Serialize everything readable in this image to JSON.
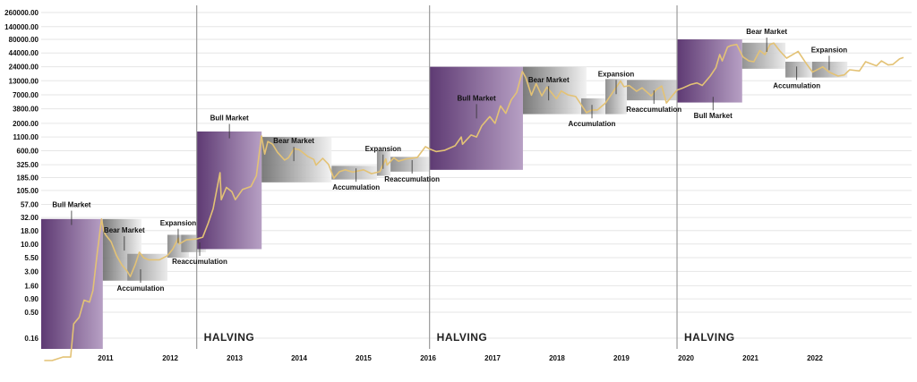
{
  "chart_data": {
    "type": "line",
    "title": "",
    "xlabel": "",
    "ylabel": "",
    "y_scale": "log",
    "y_ticks": [
      "260000.00",
      "140000.00",
      "80000.00",
      "44000.00",
      "24000.00",
      "13000.00",
      "7000.00",
      "3800.00",
      "2000.00",
      "1100.00",
      "600.00",
      "325.00",
      "185.00",
      "105.00",
      "57.00",
      "32.00",
      "18.00",
      "10.00",
      "5.50",
      "3.00",
      "1.60",
      "0.90",
      "0.50",
      "0.16"
    ],
    "x_ticks": [
      "2011",
      "2012",
      "2013",
      "2014",
      "2015",
      "2016",
      "2017",
      "2018",
      "2019",
      "2020",
      "2021",
      "2022"
    ],
    "halving_label": "HALVING",
    "halvings": [
      "2012-11-28",
      "2016-07-09",
      "2020-05-11"
    ],
    "series": [
      {
        "color": "#e3c275",
        "points": [
          [
            "2010-07-18",
            0.06
          ],
          [
            "2010-09-01",
            0.06
          ],
          [
            "2010-11-01",
            0.07
          ],
          [
            "2010-12-15",
            0.07
          ],
          [
            "2011-01-01",
            0.3
          ],
          [
            "2011-02-01",
            0.4
          ],
          [
            "2011-03-01",
            0.85
          ],
          [
            "2011-04-01",
            0.78
          ],
          [
            "2011-04-20",
            1.3
          ],
          [
            "2011-05-15",
            7
          ],
          [
            "2011-06-08",
            30
          ],
          [
            "2011-06-20",
            18
          ],
          [
            "2011-07-01",
            15
          ],
          [
            "2011-08-01",
            11
          ],
          [
            "2011-09-01",
            6
          ],
          [
            "2011-10-01",
            4
          ],
          [
            "2011-11-01",
            3
          ],
          [
            "2011-11-18",
            2.4
          ],
          [
            "2011-12-15",
            4
          ],
          [
            "2012-01-08",
            7
          ],
          [
            "2012-02-01",
            5.5
          ],
          [
            "2012-03-01",
            5
          ],
          [
            "2012-05-01",
            5
          ],
          [
            "2012-06-15",
            6
          ],
          [
            "2012-07-15",
            8
          ],
          [
            "2012-08-16",
            13
          ],
          [
            "2012-08-20",
            10
          ],
          [
            "2012-10-01",
            12
          ],
          [
            "2012-11-28",
            12.5
          ],
          [
            "2013-01-01",
            13.5
          ],
          [
            "2013-02-01",
            25
          ],
          [
            "2013-03-01",
            47
          ],
          [
            "2013-04-09",
            230
          ],
          [
            "2013-04-16",
            70
          ],
          [
            "2013-05-15",
            120
          ],
          [
            "2013-06-15",
            100
          ],
          [
            "2013-07-05",
            70
          ],
          [
            "2013-08-15",
            110
          ],
          [
            "2013-10-01",
            125
          ],
          [
            "2013-11-01",
            200
          ],
          [
            "2013-11-30",
            1150
          ],
          [
            "2013-12-18",
            520
          ],
          [
            "2014-01-05",
            900
          ],
          [
            "2014-02-01",
            800
          ],
          [
            "2014-03-01",
            560
          ],
          [
            "2014-04-10",
            400
          ],
          [
            "2014-05-01",
            440
          ],
          [
            "2014-06-03",
            660
          ],
          [
            "2014-07-01",
            630
          ],
          [
            "2014-08-18",
            470
          ],
          [
            "2014-09-22",
            410
          ],
          [
            "2014-10-05",
            320
          ],
          [
            "2014-11-12",
            430
          ],
          [
            "2014-12-15",
            330
          ],
          [
            "2015-01-14",
            180
          ],
          [
            "2015-02-15",
            240
          ],
          [
            "2015-03-20",
            260
          ],
          [
            "2015-05-01",
            235
          ],
          [
            "2015-07-01",
            260
          ],
          [
            "2015-08-15",
            220
          ],
          [
            "2015-10-01",
            240
          ],
          [
            "2015-11-04",
            420
          ],
          [
            "2015-11-11",
            320
          ],
          [
            "2015-12-20",
            440
          ],
          [
            "2016-01-15",
            380
          ],
          [
            "2016-03-01",
            420
          ],
          [
            "2016-05-01",
            450
          ],
          [
            "2016-06-16",
            720
          ],
          [
            "2016-07-09",
            650
          ],
          [
            "2016-08-15",
            580
          ],
          [
            "2016-10-01",
            610
          ],
          [
            "2016-12-01",
            750
          ],
          [
            "2017-01-05",
            1100
          ],
          [
            "2017-01-12",
            800
          ],
          [
            "2017-03-01",
            1200
          ],
          [
            "2017-04-01",
            1100
          ],
          [
            "2017-05-01",
            1800
          ],
          [
            "2017-06-15",
            2700
          ],
          [
            "2017-07-15",
            2000
          ],
          [
            "2017-08-15",
            4300
          ],
          [
            "2017-09-14",
            3100
          ],
          [
            "2017-10-15",
            5600
          ],
          [
            "2017-11-15",
            7800
          ],
          [
            "2017-12-17",
            19500
          ],
          [
            "2018-01-05",
            15000
          ],
          [
            "2018-02-06",
            6900
          ],
          [
            "2018-03-05",
            11500
          ],
          [
            "2018-04-06",
            6700
          ],
          [
            "2018-05-05",
            9800
          ],
          [
            "2018-06-28",
            5900
          ],
          [
            "2018-07-25",
            8300
          ],
          [
            "2018-09-01",
            7000
          ],
          [
            "2018-10-15",
            6500
          ],
          [
            "2018-11-20",
            4300
          ],
          [
            "2018-12-15",
            3200
          ],
          [
            "2019-01-15",
            3600
          ],
          [
            "2019-02-15",
            3600
          ],
          [
            "2019-04-02",
            4900
          ],
          [
            "2019-05-15",
            8000
          ],
          [
            "2019-06-26",
            12900
          ],
          [
            "2019-07-15",
            10000
          ],
          [
            "2019-08-15",
            10500
          ],
          [
            "2019-09-25",
            8200
          ],
          [
            "2019-10-26",
            9500
          ],
          [
            "2019-12-17",
            6700
          ],
          [
            "2020-01-15",
            8800
          ],
          [
            "2020-02-14",
            10300
          ],
          [
            "2020-03-12",
            4900
          ],
          [
            "2020-04-15",
            6800
          ],
          [
            "2020-05-11",
            8600
          ],
          [
            "2020-06-15",
            9500
          ],
          [
            "2020-07-27",
            11000
          ],
          [
            "2020-09-01",
            11800
          ],
          [
            "2020-10-01",
            10600
          ],
          [
            "2020-11-15",
            16000
          ],
          [
            "2020-12-17",
            23000
          ],
          [
            "2021-01-08",
            41000
          ],
          [
            "2021-01-22",
            31000
          ],
          [
            "2021-02-21",
            57000
          ],
          [
            "2021-03-13",
            61000
          ],
          [
            "2021-04-14",
            64000
          ],
          [
            "2021-05-19",
            37000
          ],
          [
            "2021-06-22",
            31000
          ],
          [
            "2021-07-20",
            30000
          ],
          [
            "2021-08-23",
            49000
          ],
          [
            "2021-09-21",
            41000
          ],
          [
            "2021-10-20",
            64000
          ],
          [
            "2021-11-10",
            68000
          ],
          [
            "2021-12-15",
            48000
          ],
          [
            "2022-01-22",
            35000
          ],
          [
            "2022-03-28",
            47000
          ],
          [
            "2022-05-12",
            28000
          ],
          [
            "2022-06-18",
            19000
          ],
          [
            "2022-08-15",
            24000
          ],
          [
            "2022-09-20",
            19000
          ],
          [
            "2022-11-09",
            16000
          ],
          [
            "2022-12-15",
            16800
          ],
          [
            "2023-01-14",
            21000
          ],
          [
            "2023-03-10",
            20000
          ],
          [
            "2023-04-14",
            30000
          ],
          [
            "2023-06-15",
            25000
          ],
          [
            "2023-07-13",
            31000
          ],
          [
            "2023-08-20",
            26000
          ],
          [
            "2023-09-15",
            26500
          ],
          [
            "2023-10-24",
            34000
          ],
          [
            "2023-11-15",
            36000
          ]
        ]
      }
    ],
    "phases": [
      {
        "label": "Bull Market",
        "style": "bull",
        "x0": "2010-07-01",
        "x1": "2011-06-15",
        "y0": 0.1,
        "y1": 30,
        "label_pos": "above",
        "label_x": "2010-12-20",
        "label_y": 40
      },
      {
        "label": "Bear Market",
        "style": "bear",
        "x0": "2011-06-15",
        "x1": "2012-01-20",
        "y0": 2,
        "y1": 30,
        "label_pos": "above",
        "label_x": "2011-10-15",
        "label_y": 13
      },
      {
        "label": "Accumulation",
        "style": "grey",
        "x0": "2011-11-01",
        "x1": "2012-06-15",
        "y0": 2,
        "y1": 6.5,
        "label_pos": "below",
        "label_x": "2012-01-15",
        "label_y": 1.9
      },
      {
        "label": "Expansion",
        "style": "grey",
        "x0": "2012-06-15",
        "x1": "2012-10-15",
        "y0": 5.5,
        "y1": 15,
        "label_pos": "above",
        "label_x": "2012-08-15",
        "label_y": 18
      },
      {
        "label": "Reaccumulation",
        "style": "grey",
        "x0": "2012-09-01",
        "x1": "2013-01-20",
        "y0": 7,
        "y1": 15,
        "label_pos": "below",
        "label_x": "2012-12-15",
        "label_y": 6.2
      },
      {
        "label": "Bull Market",
        "style": "bull",
        "x0": "2012-11-28",
        "x1": "2013-12-01",
        "y0": 8,
        "y1": 1400,
        "label_pos": "above",
        "label_x": "2013-06-01",
        "label_y": 1800
      },
      {
        "label": "Bear Market",
        "style": "bear",
        "x0": "2013-12-01",
        "x1": "2015-01-01",
        "y0": 150,
        "y1": 1100,
        "label_pos": "above",
        "label_x": "2014-06-01",
        "label_y": 660
      },
      {
        "label": "Accumulation",
        "style": "grey",
        "x0": "2015-01-01",
        "x1": "2015-09-15",
        "y0": 170,
        "y1": 310,
        "label_pos": "below",
        "label_x": "2015-05-20",
        "label_y": 160
      },
      {
        "label": "Expansion",
        "style": "grey",
        "x0": "2015-09-15",
        "x1": "2015-12-01",
        "y0": 200,
        "y1": 600,
        "label_pos": "above",
        "label_x": "2015-10-20",
        "label_y": 470
      },
      {
        "label": "Reaccumulation",
        "style": "grey",
        "x0": "2015-12-01",
        "x1": "2016-07-09",
        "y0": 240,
        "y1": 460,
        "label_pos": "below",
        "label_x": "2016-04-01",
        "label_y": 230
      },
      {
        "label": "Bull Market",
        "style": "bull",
        "x0": "2016-07-09",
        "x1": "2017-12-20",
        "y0": 260,
        "y1": 24000,
        "label_pos": "above",
        "label_x": "2017-04-01",
        "label_y": 4300
      },
      {
        "label": "Bear Market",
        "style": "bear",
        "x0": "2017-12-20",
        "x1": "2018-12-15",
        "y0": 3000,
        "y1": 24000,
        "label_pos": "above",
        "label_x": "2018-05-15",
        "label_y": 9500
      },
      {
        "label": "Accumulation",
        "style": "grey",
        "x0": "2018-11-15",
        "x1": "2019-04-01",
        "y0": 3000,
        "y1": 6000,
        "label_pos": "below",
        "label_x": "2019-01-15",
        "label_y": 2600
      },
      {
        "label": "Expansion",
        "style": "grey",
        "x0": "2019-04-01",
        "x1": "2019-08-01",
        "y0": 3000,
        "y1": 14000,
        "label_pos": "above",
        "label_x": "2019-06-01",
        "label_y": 12500
      },
      {
        "label": "Reaccumulation",
        "style": "grey",
        "x0": "2019-08-01",
        "x1": "2020-09-01",
        "y0": 5500,
        "y1": 13500,
        "label_pos": "below",
        "label_x": "2020-01-01",
        "label_y": 4900
      },
      {
        "label": "Bull Market",
        "style": "bull",
        "x0": "2020-05-11",
        "x1": "2021-05-15",
        "y0": 5000,
        "y1": 80000,
        "label_pos": "below",
        "label_x": "2020-12-01",
        "label_y": 3700
      },
      {
        "label": "Bear Market",
        "style": "grey",
        "x0": "2021-05-15",
        "x1": "2022-01-15",
        "y0": 22000,
        "y1": 69000,
        "label_pos": "above",
        "label_x": "2021-10-01",
        "label_y": 80000
      },
      {
        "label": "Accumulation",
        "style": "grey",
        "x0": "2022-01-15",
        "x1": "2022-06-15",
        "y0": 15000,
        "y1": 30000,
        "label_pos": "below",
        "label_x": "2022-03-20",
        "label_y": 14000
      },
      {
        "label": "Expansion",
        "style": "grey",
        "x0": "2022-06-15",
        "x1": "2023-01-01",
        "y0": 15000,
        "y1": 30000,
        "label_pos": "above",
        "label_x": "2022-09-20",
        "label_y": 36000
      }
    ]
  },
  "colors": {
    "line": "#e3c275",
    "bull_dark": "#5e3a73",
    "bull_light": "#b7a0c4",
    "grey_dark": "#6f6f6f",
    "grey_light": "#f1f1f1",
    "halving_line": "#9a9a9a"
  }
}
